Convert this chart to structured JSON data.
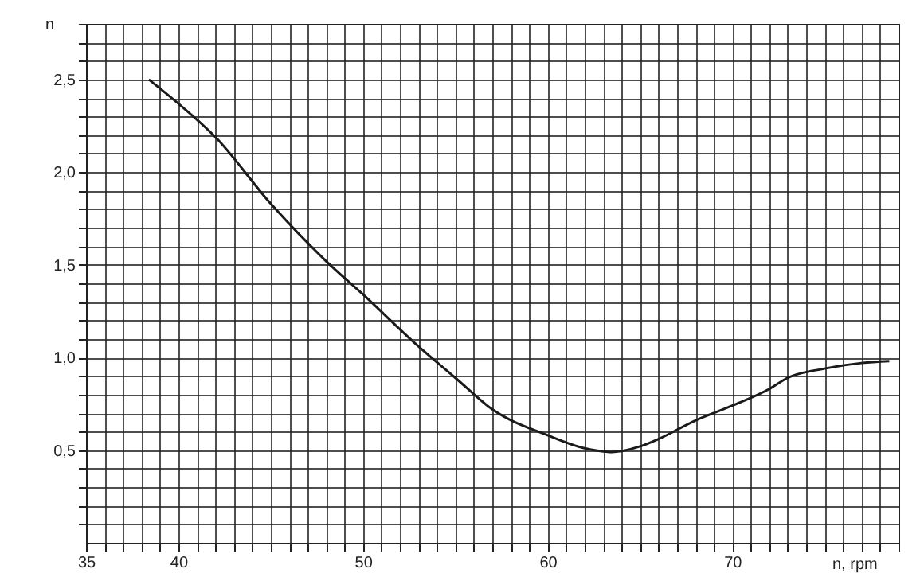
{
  "chart_data": {
    "type": "line",
    "xlabel": "n, rpm",
    "ylabel": "n",
    "x": [
      38.4,
      40,
      42,
      45,
      48,
      50,
      53,
      55,
      57,
      60,
      62,
      63.5,
      65,
      66,
      68,
      70,
      72,
      73,
      75,
      77,
      78.5
    ],
    "series": [
      {
        "color": "#1a1a1a",
        "values": [
          2.5,
          2.37,
          2.19,
          1.83,
          1.52,
          1.34,
          1.06,
          0.89,
          0.72,
          0.58,
          0.51,
          0.49,
          0.52,
          0.56,
          0.66,
          0.74,
          0.83,
          0.89,
          0.94,
          0.97,
          0.98
        ]
      }
    ],
    "xlim": [
      35,
      79
    ],
    "ylim": [
      0,
      2.8
    ],
    "xticks": [
      35,
      {
        "value": 36,
        "label": null
      },
      {
        "value": 37,
        "label": null
      },
      {
        "value": 38,
        "label": null
      },
      {
        "value": 39,
        "label": null
      },
      40,
      {
        "value": 41,
        "label": null
      },
      {
        "value": 42,
        "label": null
      },
      {
        "value": 43,
        "label": null
      },
      {
        "value": 44,
        "label": null
      },
      {
        "value": 45,
        "label": null
      },
      {
        "value": 46,
        "label": null
      },
      {
        "value": 47,
        "label": null
      },
      {
        "value": 48,
        "label": null
      },
      {
        "value": 49,
        "label": null
      },
      50,
      {
        "value": 51,
        "label": null
      },
      {
        "value": 52,
        "label": null
      },
      {
        "value": 53,
        "label": null
      },
      {
        "value": 54,
        "label": null
      },
      {
        "value": 55,
        "label": null
      },
      {
        "value": 56,
        "label": null
      },
      {
        "value": 57,
        "label": null
      },
      {
        "value": 58,
        "label": null
      },
      {
        "value": 59,
        "label": null
      },
      60,
      {
        "value": 61,
        "label": null
      },
      {
        "value": 62,
        "label": null
      },
      {
        "value": 63,
        "label": null
      },
      {
        "value": 64,
        "label": null
      },
      {
        "value": 65,
        "label": null
      },
      {
        "value": 66,
        "label": null
      },
      {
        "value": 67,
        "label": null
      },
      {
        "value": 68,
        "label": null
      },
      {
        "value": 69,
        "label": null
      },
      70,
      {
        "value": 71,
        "label": null
      },
      {
        "value": 72,
        "label": null
      },
      {
        "value": 73,
        "label": null
      },
      {
        "value": 74,
        "label": null
      },
      {
        "value": 75,
        "label": null
      },
      {
        "value": 76,
        "label": null
      },
      {
        "value": 77,
        "label": null
      },
      {
        "value": 78,
        "label": null
      },
      {
        "value": 79,
        "label": null
      }
    ],
    "yticks": [
      {
        "value": 0.1,
        "label": null
      },
      {
        "value": 0.2,
        "label": null
      },
      {
        "value": 0.3,
        "label": null
      },
      {
        "value": 0.4,
        "label": null
      },
      {
        "value": 0.5,
        "label": "0,5"
      },
      {
        "value": 0.6,
        "label": null
      },
      {
        "value": 0.7,
        "label": null
      },
      {
        "value": 0.8,
        "label": null
      },
      {
        "value": 0.9,
        "label": null
      },
      {
        "value": 1.0,
        "label": "1,0"
      },
      {
        "value": 1.1,
        "label": null
      },
      {
        "value": 1.2,
        "label": null
      },
      {
        "value": 1.3,
        "label": null
      },
      {
        "value": 1.4,
        "label": null
      },
      {
        "value": 1.5,
        "label": "1,5"
      },
      {
        "value": 1.6,
        "label": null
      },
      {
        "value": 1.7,
        "label": null
      },
      {
        "value": 1.8,
        "label": null
      },
      {
        "value": 1.9,
        "label": null
      },
      {
        "value": 2.0,
        "label": "2,0"
      },
      {
        "value": 2.1,
        "label": null
      },
      {
        "value": 2.2,
        "label": null
      },
      {
        "value": 2.3,
        "label": null
      },
      {
        "value": 2.4,
        "label": null
      },
      {
        "value": 2.5,
        "label": "2,5"
      },
      {
        "value": 2.6,
        "label": null
      },
      {
        "value": 2.7,
        "label": null
      },
      {
        "value": 2.8,
        "label": null
      }
    ],
    "grid": true,
    "marker": "none",
    "line_style": "solid"
  }
}
